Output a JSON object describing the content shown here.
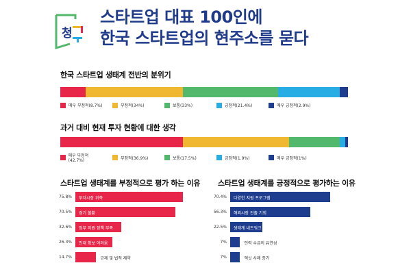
{
  "header": {
    "logo_text": "청구",
    "title_line1": "스타트업 대표 100인에",
    "title_line2": "한국 스타트업의 현주소를 묻다"
  },
  "colors": {
    "very_negative": "#e8264a",
    "negative": "#f0b830",
    "neutral": "#52b86b",
    "positive": "#27ade3",
    "very_positive": "#1e3d8f",
    "title": "#1f3a8a"
  },
  "chart_data": [
    {
      "type": "bar",
      "stacked": true,
      "orientation": "horizontal",
      "title": "한국 스타트업 생태계 전반의 분위기",
      "series": [
        {
          "name": "매우 부정적",
          "value": 8.7,
          "label": "매우 부정적(8.7%)"
        },
        {
          "name": "부정적",
          "value": 34,
          "label": "부정적(34%)"
        },
        {
          "name": "보통",
          "value": 33,
          "label": "보통(33%)"
        },
        {
          "name": "긍정적",
          "value": 21.4,
          "label": "긍정적(21.4%)"
        },
        {
          "name": "매우 긍정적",
          "value": 2.9,
          "label": "매우 긍정적(2.9%)"
        }
      ],
      "legend": "bottom"
    },
    {
      "type": "bar",
      "stacked": true,
      "orientation": "horizontal",
      "title": "과거 대비 현재 투자 현황에 대한 생각",
      "series": [
        {
          "name": "매우 부정적",
          "value": 42.7,
          "label": "매우 부정적(42.7%)"
        },
        {
          "name": "부정적",
          "value": 36.9,
          "label": "부정적(36.9%)"
        },
        {
          "name": "보통",
          "value": 17.5,
          "label": "보통(17.5%)"
        },
        {
          "name": "긍정적",
          "value": 1.9,
          "label": "긍정적(1.9%)"
        },
        {
          "name": "매우 긍정적",
          "value": 1,
          "label": "매우 긍정적(1%)"
        }
      ],
      "legend": "bottom"
    },
    {
      "type": "bar",
      "orientation": "horizontal",
      "title": "스타트업 생태계를 부정적으로 평가 하는 이유",
      "color": "#e8264a",
      "categories": [
        "투자시장 위축",
        "경기 불황",
        "정부 지원 정책 부족",
        "인재 확보 어려움",
        "규제 및 법적 제약"
      ],
      "values": [
        75.8,
        70.5,
        32.6,
        26.3,
        14.7
      ],
      "value_labels": [
        "75.8%",
        "70.5%",
        "32.6%",
        "26.3%",
        "14.7%"
      ]
    },
    {
      "type": "bar",
      "orientation": "horizontal",
      "title": "스타트업 생태계를 긍정적으로 평가하는 이유",
      "color": "#1e3d8f",
      "categories": [
        "다양한 지원 프로그램",
        "해외시장 진출 기회",
        "생태계 네트워크",
        "인력 수급의 유연성",
        "엑싯 사례 증가"
      ],
      "values": [
        70.4,
        56.3,
        22.5,
        7,
        7
      ],
      "value_labels": [
        "70.4%",
        "56.3%",
        "22.5%",
        "7%",
        "7%"
      ]
    }
  ]
}
